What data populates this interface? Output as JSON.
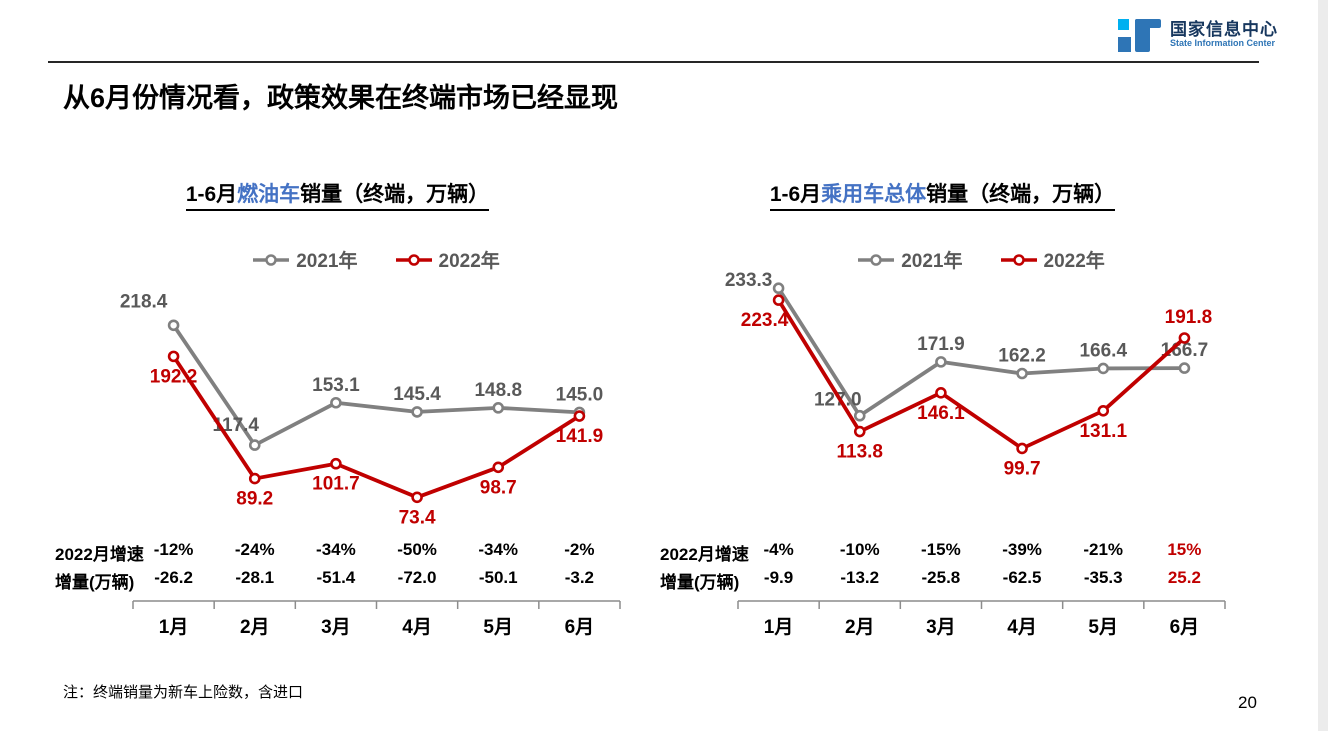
{
  "header": {
    "logo_zh": "国家信息中心",
    "logo_en": "State Information Center"
  },
  "slide_title": "从6月份情况看，政策效果在终端市场已经显现",
  "note": "注：终端销量为新车上险数，含进口",
  "page_number": "20",
  "colors": {
    "series_2021": "#808080",
    "series_2022": "#C00000",
    "title_highlight": "#4472C4",
    "label_gray": "#595959",
    "axis": "#8C8C8C"
  },
  "chart_data": [
    {
      "id": "fuel-vehicle",
      "type": "line",
      "title": {
        "prefix": "1-6月",
        "highlight": "燃油车",
        "suffix": "销量（终端，万辆）"
      },
      "categories": [
        "1月",
        "2月",
        "3月",
        "4月",
        "5月",
        "6月"
      ],
      "legend_position": "top-center",
      "grid": false,
      "ylim": [
        -14,
        265
      ],
      "series": [
        {
          "name": "2021年",
          "color": "#808080",
          "label_color": "#595959",
          "values": [
            218.4,
            117.4,
            153.1,
            145.4,
            148.8,
            145.0
          ],
          "labels": [
            "218.4",
            "117.4",
            "153.1",
            "145.4",
            "148.8",
            "145.0"
          ],
          "label_side": "above",
          "label_offsets": {
            "0": [
              -30,
              -18
            ],
            "1": [
              -19,
              -14
            ]
          }
        },
        {
          "name": "2022年",
          "color": "#C00000",
          "label_color": "#C00000",
          "values": [
            192.2,
            89.2,
            101.7,
            73.4,
            98.7,
            141.9
          ],
          "labels": [
            "192.2",
            "89.2",
            "101.7",
            "73.4",
            "98.7",
            "141.9"
          ],
          "label_side": "below",
          "label_offsets": {}
        }
      ],
      "table_rows": [
        {
          "label": "2022月增速",
          "values": [
            "-12%",
            "-24%",
            "-34%",
            "-50%",
            "-34%",
            "-2%"
          ],
          "red_cells": []
        },
        {
          "label": "增量(万辆)",
          "values": [
            "-26.2",
            "-28.1",
            "-51.4",
            "-72.0",
            "-50.1",
            "-3.2"
          ],
          "red_cells": []
        }
      ]
    },
    {
      "id": "passenger-vehicle-total",
      "type": "line",
      "title": {
        "prefix": "1-6月",
        "highlight": "乘用车总体",
        "suffix": "销量（终端，万辆）"
      },
      "categories": [
        "1月",
        "2月",
        "3月",
        "4月",
        "5月",
        "6月"
      ],
      "legend_position": "top-center",
      "grid": false,
      "ylim": [
        -27.5,
        248.5
      ],
      "series": [
        {
          "name": "2021年",
          "color": "#808080",
          "label_color": "#595959",
          "values": [
            233.3,
            127.0,
            171.9,
            162.2,
            166.4,
            166.7
          ],
          "labels": [
            "233.3",
            "127.0",
            "171.9",
            "162.2",
            "166.4",
            "166.7"
          ],
          "label_side": "above",
          "label_offsets": {
            "0": [
              -30,
              -2
            ],
            "1": [
              -22,
              -10
            ]
          }
        },
        {
          "name": "2022年",
          "color": "#C00000",
          "label_color": "#C00000",
          "values": [
            223.4,
            113.8,
            146.1,
            99.7,
            131.1,
            191.8
          ],
          "labels": [
            "223.4",
            "113.8",
            "146.1",
            "99.7",
            "131.1",
            "191.8"
          ],
          "label_side": "below",
          "label_offsets": {
            "0": [
              -14,
              26
            ],
            "5": [
              4,
              -15
            ]
          }
        }
      ],
      "table_rows": [
        {
          "label": "2022月增速",
          "values": [
            "-4%",
            "-10%",
            "-15%",
            "-39%",
            "-21%",
            "15%"
          ],
          "red_cells": [
            5
          ]
        },
        {
          "label": "增量(万辆)",
          "values": [
            "-9.9",
            "-13.2",
            "-25.8",
            "-62.5",
            "-35.3",
            "25.2"
          ],
          "red_cells": [
            5
          ]
        }
      ]
    }
  ]
}
